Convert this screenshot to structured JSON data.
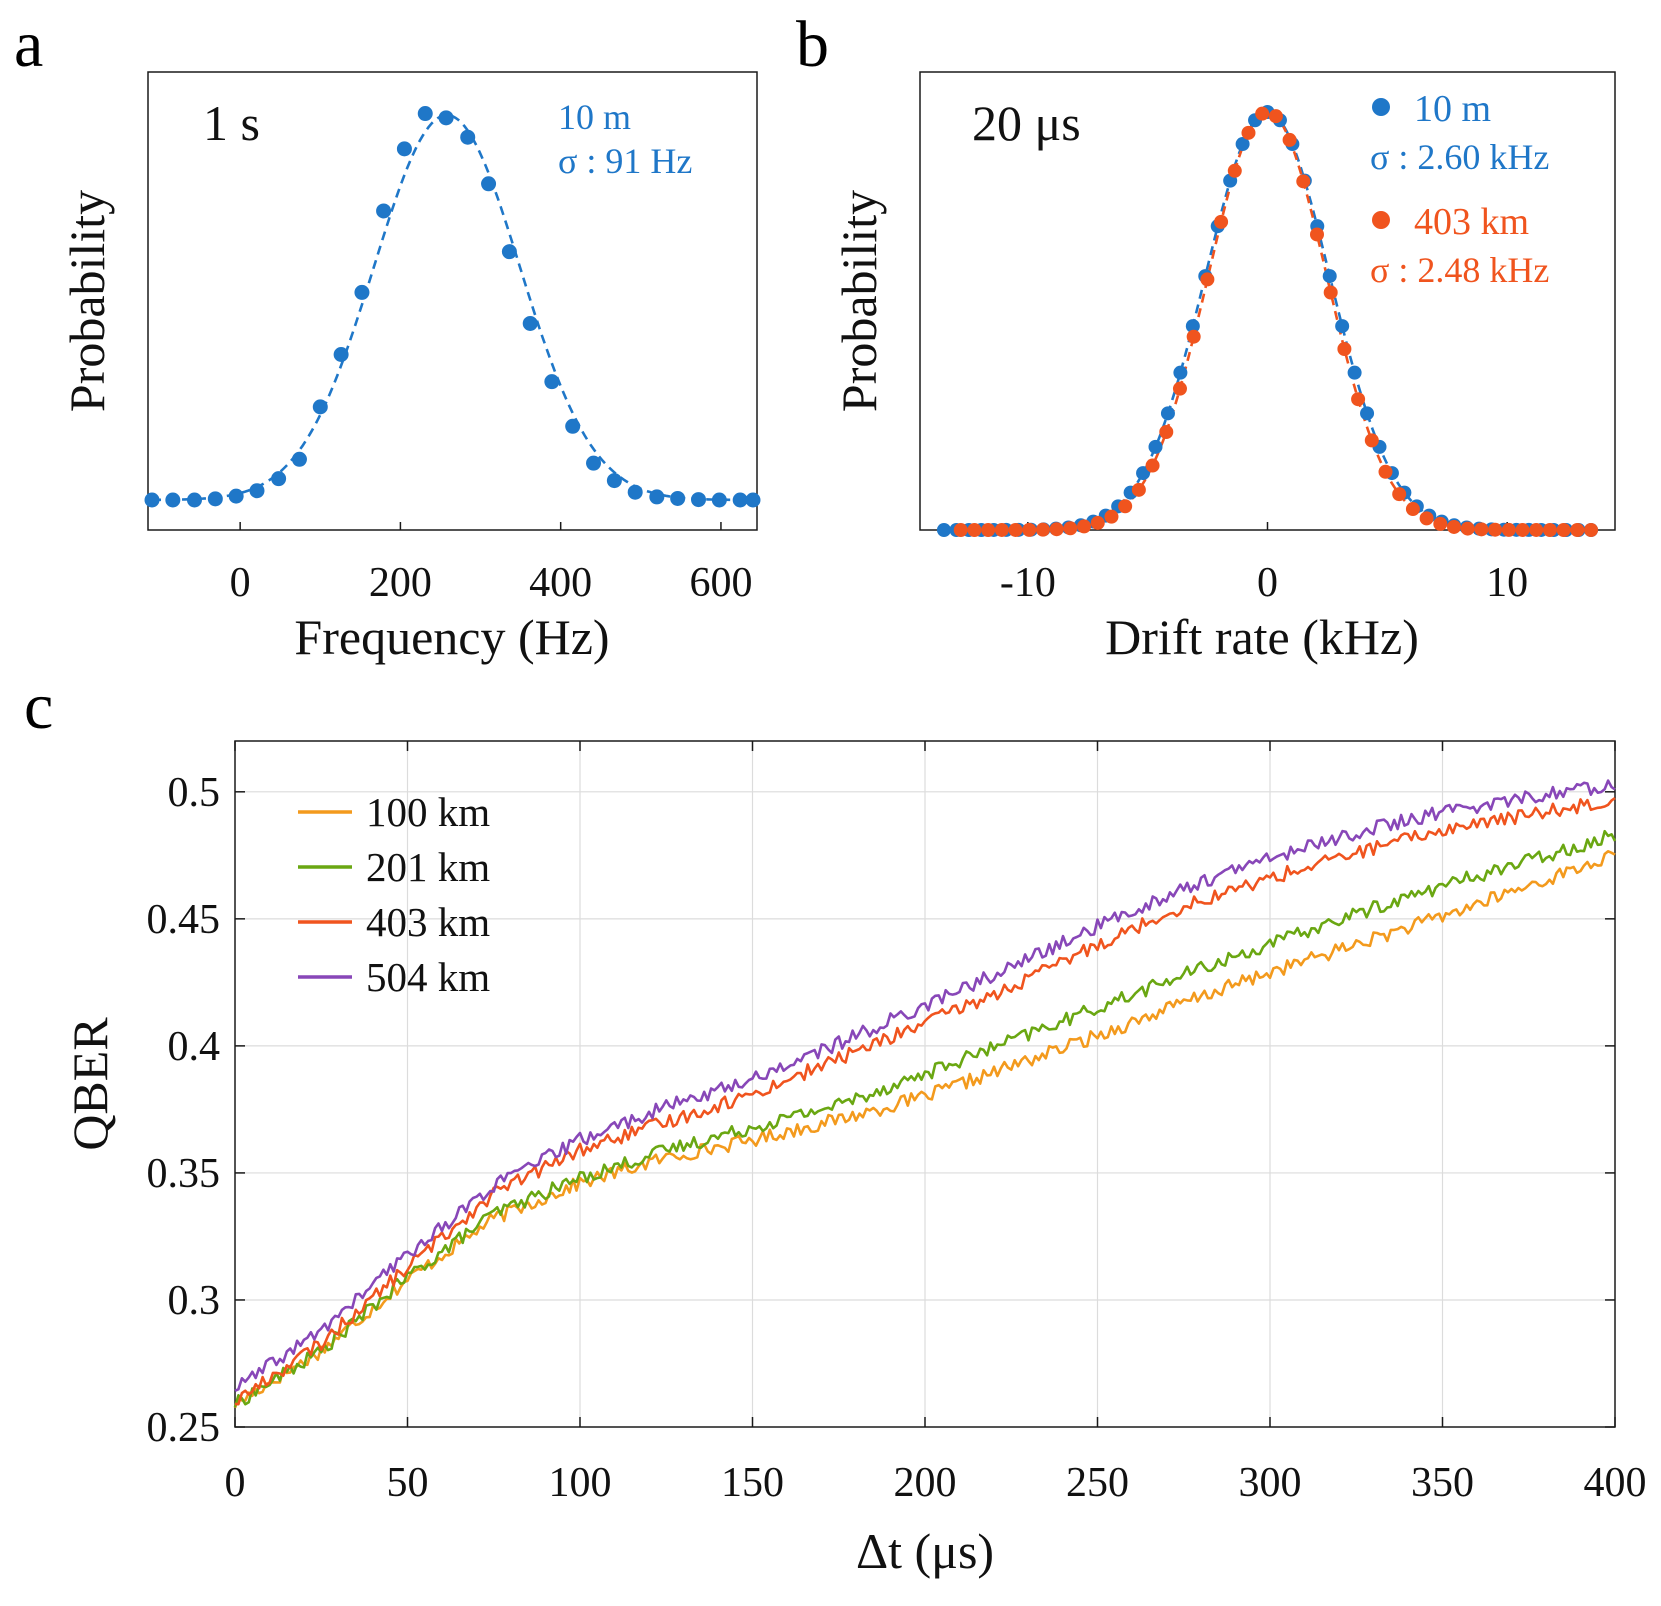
{
  "colors": {
    "blue": "#1f77c8",
    "orange": "#f0541e",
    "c100": "#f39a1d",
    "c201": "#6aa712",
    "c403": "#f0541e",
    "c504": "#8847b8",
    "grid": "#dcdcdc",
    "axis": "#1a1a1a"
  },
  "panel_labels": [
    "a",
    "b",
    "c"
  ],
  "chart_data": [
    {
      "id": "a",
      "type": "scatter",
      "title": "",
      "inset_label": "1 s",
      "xlabel": "Frequency (Hz)",
      "ylabel": "Probability",
      "xlim": [
        -115,
        645
      ],
      "ylim": [
        0,
        1.0
      ],
      "xticks": [
        0,
        200,
        400,
        600
      ],
      "xtick_labels": [
        "0",
        "200",
        "400",
        "600"
      ],
      "grid": false,
      "series": [
        {
          "name": "10 m",
          "sigma_label": "σ : 91 Hz",
          "color": "#1f77c8",
          "fit": "dashed",
          "mu": 258,
          "sigma": 91,
          "amp": 0.992,
          "x": [
            -110,
            -84,
            -57,
            -31,
            -5,
            21,
            48,
            74,
            100,
            126,
            152,
            179,
            205,
            231,
            257,
            284,
            310,
            336,
            362,
            389,
            415,
            441,
            467,
            493,
            520,
            546,
            572,
            598,
            624,
            640
          ],
          "y": [
            0.0,
            0.0,
            0.0,
            0.003,
            0.01,
            0.024,
            0.055,
            0.105,
            0.24,
            0.375,
            0.535,
            0.745,
            0.905,
            0.996,
            0.985,
            0.935,
            0.815,
            0.64,
            0.455,
            0.305,
            0.19,
            0.095,
            0.05,
            0.02,
            0.008,
            0.004,
            0.001,
            0.0,
            0.0,
            0.0
          ]
        }
      ],
      "legend_position": "top-right"
    },
    {
      "id": "b",
      "type": "scatter",
      "title": "",
      "inset_label": "20 μs",
      "xlabel": "Drift rate (kHz)",
      "ylabel": "Probability",
      "xlim": [
        -14.5,
        14.5
      ],
      "ylim": [
        0,
        1.0
      ],
      "xticks": [
        -10,
        0,
        10
      ],
      "xtick_labels": [
        "-10",
        "0",
        "10"
      ],
      "grid": false,
      "series": [
        {
          "name": "10 m",
          "sigma_label": "σ : 2.60 kHz",
          "color": "#1f77c8",
          "fit": "dashed",
          "mu": 0,
          "sigma": 2.6,
          "amp": 1.0,
          "xmin": -13.5,
          "xmax": 13.5,
          "n": 53
        },
        {
          "name": "403 km",
          "sigma_label": "σ : 2.48 kHz",
          "color": "#f0541e",
          "fit": "dashed",
          "mu": 0,
          "sigma": 2.48,
          "amp": 1.0,
          "xmin": -12.8,
          "xmax": 13.5,
          "n": 47
        }
      ],
      "legend_position": "top-right"
    },
    {
      "id": "c",
      "type": "line",
      "title": "",
      "xlabel": "Δt (μs)",
      "ylabel": "QBER",
      "xlim": [
        0,
        400
      ],
      "ylim": [
        0.25,
        0.52
      ],
      "xticks": [
        0,
        50,
        100,
        150,
        200,
        250,
        300,
        350,
        400
      ],
      "xtick_labels": [
        "0",
        "50",
        "100",
        "150",
        "200",
        "250",
        "300",
        "350",
        "400"
      ],
      "yticks": [
        0.25,
        0.3,
        0.35,
        0.4,
        0.45,
        0.5
      ],
      "ytick_labels": [
        "0.25",
        "0.3",
        "0.35",
        "0.4",
        "0.45",
        "0.5"
      ],
      "grid": true,
      "legend_position": "top-left",
      "series": [
        {
          "name": "100 km",
          "color": "#f39a1d",
          "x": [
            0,
            25,
            50,
            75,
            100,
            125,
            150,
            175,
            200,
            225,
            250,
            275,
            300,
            325,
            350,
            375,
            400
          ],
          "y": [
            0.259,
            0.28,
            0.308,
            0.332,
            0.346,
            0.356,
            0.363,
            0.371,
            0.38,
            0.392,
            0.404,
            0.417,
            0.429,
            0.44,
            0.451,
            0.463,
            0.475
          ]
        },
        {
          "name": "201 km",
          "color": "#6aa712",
          "x": [
            0,
            25,
            50,
            75,
            100,
            125,
            150,
            175,
            200,
            225,
            250,
            275,
            300,
            325,
            350,
            375,
            400
          ],
          "y": [
            0.259,
            0.28,
            0.309,
            0.334,
            0.348,
            0.359,
            0.368,
            0.377,
            0.389,
            0.402,
            0.415,
            0.428,
            0.44,
            0.452,
            0.463,
            0.473,
            0.483
          ]
        },
        {
          "name": "403 km",
          "color": "#f0541e",
          "x": [
            0,
            25,
            50,
            75,
            100,
            125,
            150,
            175,
            200,
            225,
            250,
            275,
            300,
            325,
            350,
            375,
            400
          ],
          "y": [
            0.26,
            0.283,
            0.313,
            0.342,
            0.359,
            0.37,
            0.381,
            0.395,
            0.409,
            0.423,
            0.44,
            0.455,
            0.466,
            0.476,
            0.485,
            0.491,
            0.497
          ]
        },
        {
          "name": "504 km",
          "color": "#8847b8",
          "x": [
            0,
            25,
            50,
            75,
            100,
            125,
            150,
            175,
            200,
            225,
            250,
            275,
            300,
            325,
            350,
            375,
            400
          ],
          "y": [
            0.265,
            0.288,
            0.318,
            0.345,
            0.363,
            0.376,
            0.387,
            0.401,
            0.416,
            0.431,
            0.447,
            0.462,
            0.474,
            0.484,
            0.492,
            0.498,
            0.503
          ]
        }
      ]
    }
  ]
}
